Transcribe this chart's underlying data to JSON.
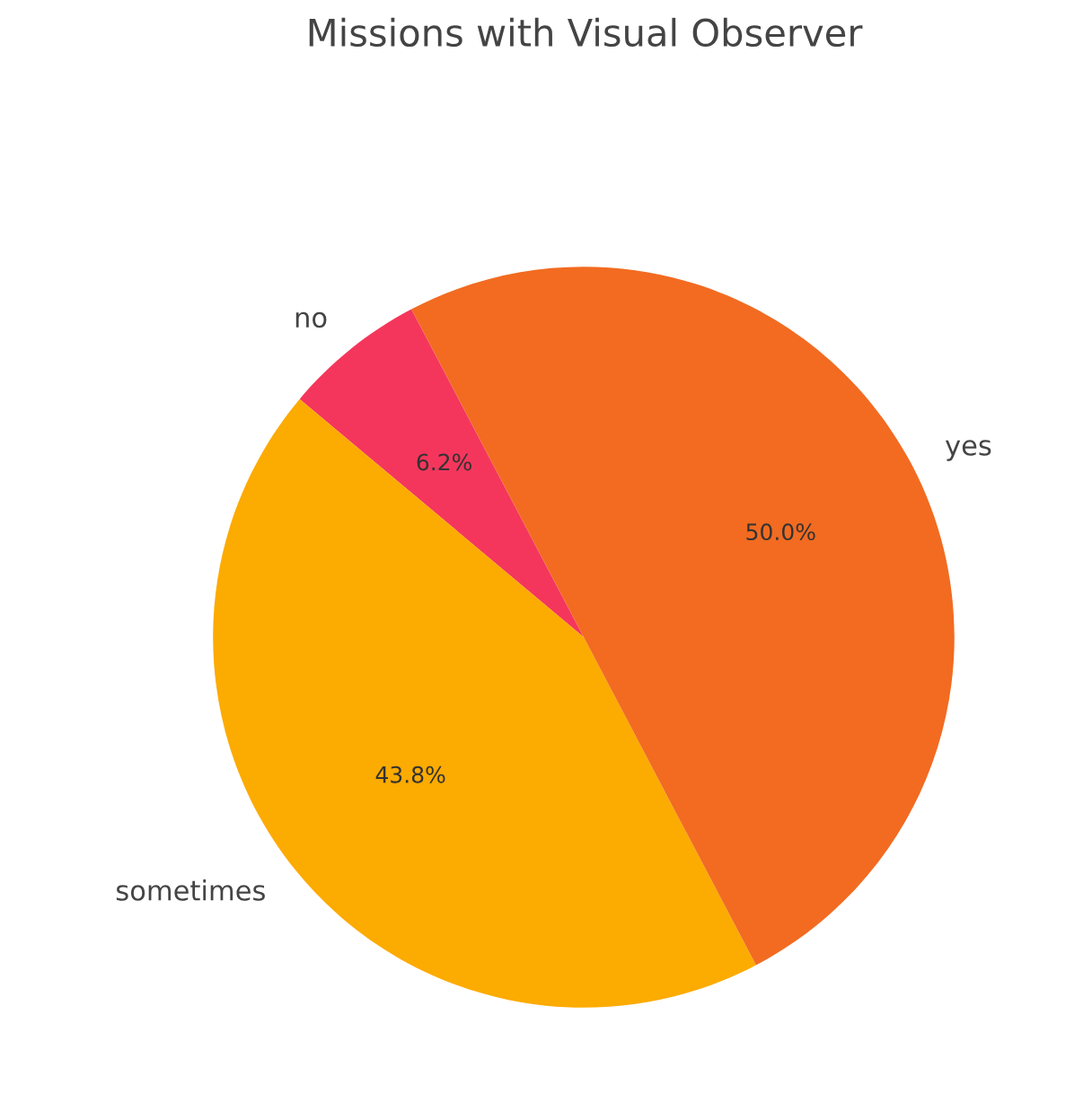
{
  "chart_data": {
    "type": "pie",
    "title": "Missions with Visual Observer",
    "categories": [
      "no",
      "sometimes",
      "yes"
    ],
    "values": [
      6.2,
      43.8,
      50.0
    ],
    "colors": [
      "#f5365c",
      "#fcab00",
      "#f26b21"
    ],
    "value_labels": [
      "6.2%",
      "43.8%",
      "50.0%"
    ]
  }
}
